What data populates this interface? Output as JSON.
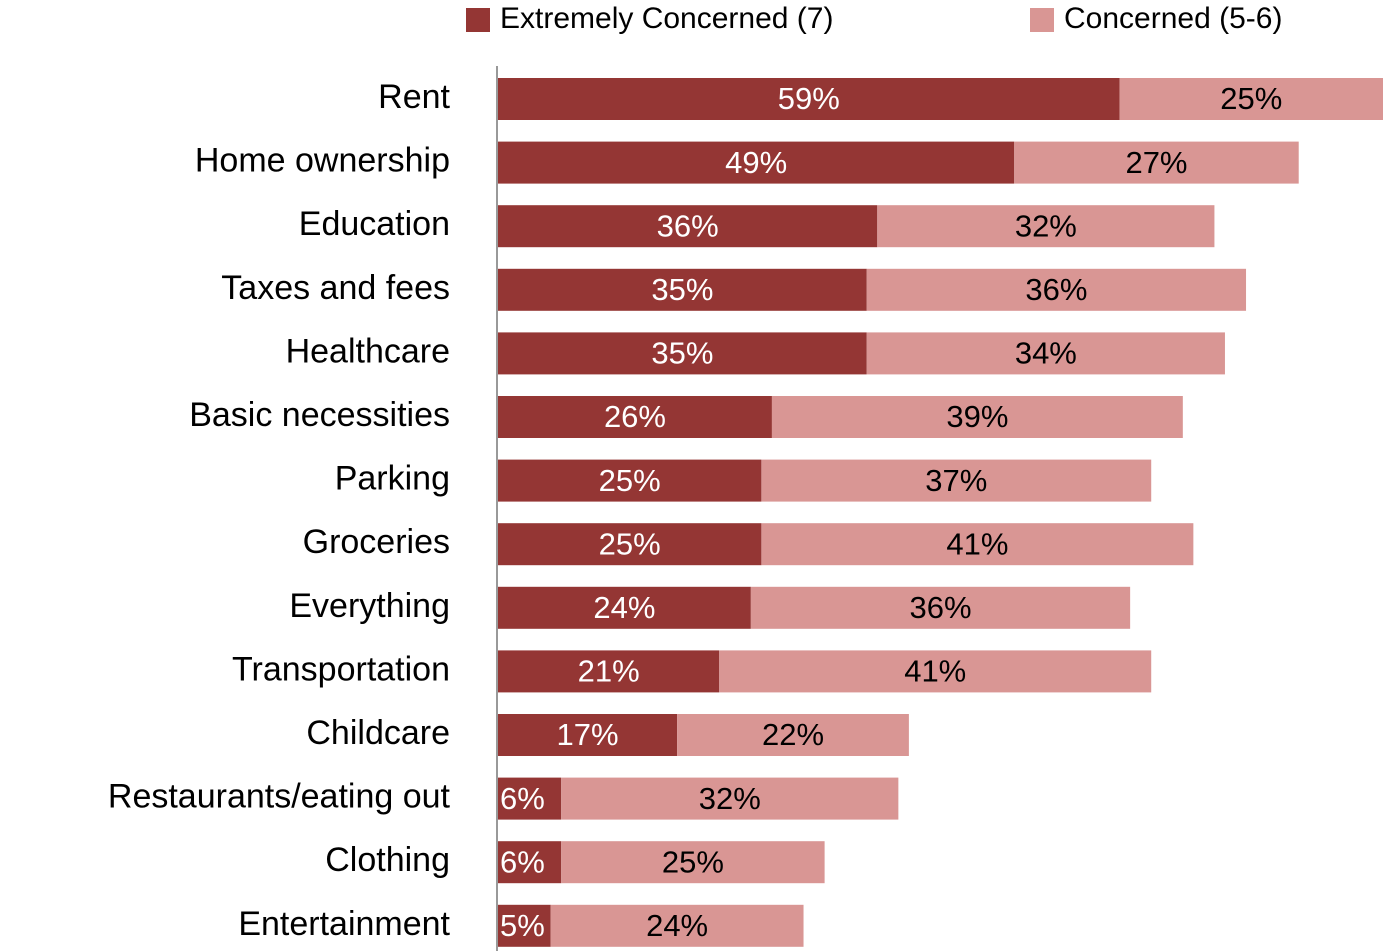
{
  "chart_data": {
    "type": "stacked-bar-horizontal",
    "categories": [
      "Rent",
      "Home ownership",
      "Education",
      "Taxes and fees",
      "Healthcare",
      "Basic necessities",
      "Parking",
      "Groceries",
      "Everything",
      "Transportation",
      "Childcare",
      "Restaurants/eating out",
      "Clothing",
      "Entertainment"
    ],
    "series": [
      {
        "name": "Extremely Concerned (7)",
        "color": "#943634",
        "values": [
          59,
          49,
          36,
          35,
          35,
          26,
          25,
          25,
          24,
          21,
          17,
          6,
          6,
          5
        ],
        "value_labels": [
          "59%",
          "49%",
          "36%",
          "35%",
          "35%",
          "26%",
          "25%",
          "25%",
          "24%",
          "21%",
          "17%",
          "6%",
          "6%",
          "5%"
        ]
      },
      {
        "name": "Concerned (5-6)",
        "color": "#d99694",
        "values": [
          25,
          27,
          32,
          36,
          34,
          39,
          37,
          41,
          36,
          41,
          22,
          32,
          25,
          24
        ],
        "value_labels": [
          "25%",
          "27%",
          "32%",
          "36%",
          "34%",
          "39%",
          "37%",
          "41%",
          "36%",
          "41%",
          "22%",
          "32%",
          "25%",
          "24%"
        ]
      }
    ],
    "xlim": [
      0,
      84
    ]
  }
}
